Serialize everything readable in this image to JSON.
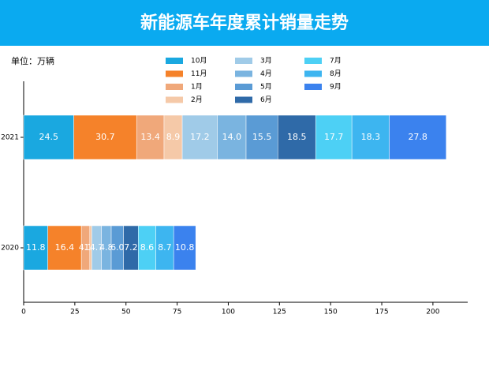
{
  "chart_data": {
    "type": "stacked-barh",
    "title": "新能源车年度累计销量走势",
    "unit_label": "单位：万辆",
    "categories": [
      "2021",
      "2020"
    ],
    "series": [
      {
        "name": "10月",
        "color": "#1aa8e0",
        "values": [
          24.5,
          11.8
        ],
        "value_labels": [
          "24.5",
          "11.8"
        ]
      },
      {
        "name": "11月",
        "color": "#f5822a",
        "values": [
          30.7,
          16.4
        ],
        "value_labels": [
          "30.7",
          "16.4"
        ]
      },
      {
        "name": "1月",
        "color": "#f0a87a",
        "values": [
          13.4,
          4.1
        ],
        "value_labels": [
          "13.4",
          "4.1"
        ]
      },
      {
        "name": "2月",
        "color": "#f5c9a8",
        "values": [
          8.9,
          1.0
        ],
        "value_labels": [
          "8.9",
          "1.0"
        ]
      },
      {
        "name": "3月",
        "color": "#a0cbe8",
        "values": [
          17.2,
          4.7
        ],
        "value_labels": [
          "17.2",
          "4.7"
        ]
      },
      {
        "name": "4月",
        "color": "#7ab4e0",
        "values": [
          14.0,
          4.8
        ],
        "value_labels": [
          "14.0",
          "4.8"
        ]
      },
      {
        "name": "5月",
        "color": "#5a9bd5",
        "values": [
          15.5,
          6.0
        ],
        "value_labels": [
          "15.5",
          "6.0"
        ]
      },
      {
        "name": "6月",
        "color": "#2f6aa8",
        "values": [
          18.5,
          7.2
        ],
        "value_labels": [
          "18.5",
          "7.2"
        ]
      },
      {
        "name": "7月",
        "color": "#4dd0f5",
        "values": [
          17.7,
          8.6
        ],
        "value_labels": [
          "17.7",
          "8.6"
        ]
      },
      {
        "name": "8月",
        "color": "#3db5f0",
        "values": [
          18.3,
          8.7
        ],
        "value_labels": [
          "18.3",
          "8.7"
        ]
      },
      {
        "name": "9月",
        "color": "#3b82ee",
        "values": [
          27.8,
          10.8
        ],
        "value_labels": [
          "27.8",
          "10.8"
        ]
      }
    ],
    "xlim": [
      0,
      217
    ],
    "xticks": [
      0,
      25,
      50,
      75,
      100,
      125,
      150,
      175,
      200
    ],
    "legend": "top",
    "banner_color": "#0aaaf0"
  }
}
